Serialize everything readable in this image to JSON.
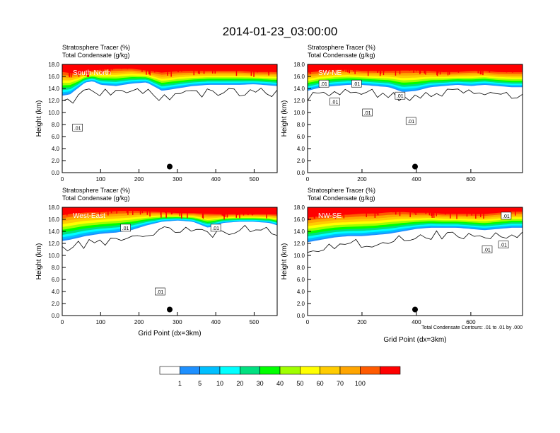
{
  "title": "2014-01-23_03:00:00",
  "chart_data": [
    {
      "type": "heatmap",
      "panel": "top-left",
      "label": "South-North",
      "subtitle_line1": "Stratosphere Tracer   (%)",
      "subtitle_line2": "Total Condensate   (g/kg)",
      "ylabel": "Height (km)",
      "xlabel": "",
      "xlim": [
        0,
        560
      ],
      "ylim": [
        0,
        18
      ],
      "xticks": [
        0,
        100,
        200,
        300,
        400,
        500
      ],
      "yticks": [
        "0.0",
        "2.0",
        "4.0",
        "6.0",
        "8.0",
        "10.0",
        "12.0",
        "14.0",
        "16.0",
        "18.0"
      ],
      "contour_labels": [
        {
          "x": 40,
          "y": 7.5,
          "text": ".01"
        }
      ],
      "marker": {
        "x": 280,
        "y": 1.0
      },
      "tracer_profile": {
        "x": [
          0,
          20,
          40,
          60,
          80,
          100,
          140,
          180,
          220,
          260,
          300,
          340,
          380,
          420,
          460,
          500,
          540,
          560
        ],
        "tracer_base_km": [
          12.8,
          13.0,
          14.0,
          15.0,
          15.2,
          14.6,
          14.4,
          14.8,
          15.0,
          13.6,
          14.0,
          14.4,
          14.6,
          14.6,
          14.6,
          14.7,
          14.5,
          14.4
        ],
        "tracer_top_km": [
          17.2,
          17.0,
          16.8,
          17.0,
          17.2,
          17.4,
          17.6,
          17.6,
          17.2,
          17.0,
          17.2,
          17.2,
          17.2,
          17.2,
          17.2,
          17.0,
          17.0,
          17.0
        ]
      }
    },
    {
      "type": "heatmap",
      "panel": "top-right",
      "label": "SW-NE",
      "subtitle_line1": "Stratosphere Tracer   (%)",
      "subtitle_line2": "Total Condensate   (g/kg)",
      "ylabel": "Height (km)",
      "xlabel": "",
      "xlim": [
        0,
        790
      ],
      "ylim": [
        0,
        18
      ],
      "xticks": [
        0,
        200,
        400,
        600
      ],
      "yticks": [
        "0.0",
        "2.0",
        "4.0",
        "6.0",
        "8.0",
        "10.0",
        "12.0",
        "14.0",
        "16.0",
        "18.0"
      ],
      "contour_labels": [
        {
          "x": 60,
          "y": 14.8,
          "text": ".01"
        },
        {
          "x": 180,
          "y": 14.8,
          "text": ".01"
        },
        {
          "x": 100,
          "y": 11.8,
          "text": ".01"
        },
        {
          "x": 220,
          "y": 10.0,
          "text": ".01"
        },
        {
          "x": 340,
          "y": 12.8,
          "text": ".01"
        },
        {
          "x": 380,
          "y": 8.6,
          "text": ".01"
        }
      ],
      "marker": {
        "x": 395,
        "y": 1.0
      },
      "tracer_profile": {
        "x": [
          0,
          50,
          100,
          150,
          200,
          250,
          300,
          350,
          400,
          450,
          500,
          550,
          600,
          650,
          700,
          750,
          790
        ],
        "tracer_base_km": [
          13.6,
          14.2,
          14.4,
          14.6,
          14.6,
          14.4,
          14.2,
          13.4,
          13.6,
          14.2,
          14.4,
          14.6,
          14.4,
          14.6,
          14.4,
          14.2,
          14.2
        ],
        "tracer_top_km": [
          17.0,
          17.2,
          17.4,
          17.4,
          17.2,
          17.2,
          17.2,
          17.4,
          17.4,
          17.2,
          17.0,
          17.0,
          17.2,
          17.2,
          17.0,
          17.0,
          17.0
        ]
      }
    },
    {
      "type": "heatmap",
      "panel": "bottom-left",
      "label": "West-East",
      "subtitle_line1": "Stratosphere Tracer   (%)",
      "subtitle_line2": "Total Condensate   (g/kg)",
      "ylabel": "Height (km)",
      "xlabel": "Grid Point (dx=3km)",
      "xlim": [
        0,
        560
      ],
      "ylim": [
        0,
        18
      ],
      "xticks": [
        0,
        100,
        200,
        300,
        400,
        500
      ],
      "yticks": [
        "0.0",
        "2.0",
        "4.0",
        "6.0",
        "8.0",
        "10.0",
        "12.0",
        "14.0",
        "16.0",
        "18.0"
      ],
      "contour_labels": [
        {
          "x": 165,
          "y": 14.6,
          "text": ".01"
        },
        {
          "x": 400,
          "y": 14.6,
          "text": ".01"
        },
        {
          "x": 255,
          "y": 4.0,
          "text": ".01"
        }
      ],
      "marker": {
        "x": 280,
        "y": 1.0
      },
      "tracer_profile": {
        "x": [
          0,
          20,
          60,
          100,
          140,
          180,
          220,
          260,
          300,
          340,
          380,
          420,
          460,
          500,
          540,
          560
        ],
        "tracer_base_km": [
          12.4,
          12.6,
          13.2,
          13.6,
          13.8,
          14.2,
          15.0,
          15.6,
          15.8,
          15.6,
          14.6,
          15.4,
          15.6,
          15.6,
          15.4,
          15.0
        ],
        "tracer_top_km": [
          17.2,
          17.4,
          17.6,
          17.6,
          17.8,
          17.8,
          17.6,
          17.4,
          17.2,
          17.2,
          17.2,
          17.0,
          17.0,
          17.0,
          17.0,
          17.0
        ]
      }
    },
    {
      "type": "heatmap",
      "panel": "bottom-right",
      "label": "NW-SE",
      "subtitle_line1": "Stratosphere Tracer   (%)",
      "subtitle_line2": "Total Condensate   (g/kg)",
      "ylabel": "Height (km)",
      "xlabel": "Grid Point (dx=3km)",
      "xlim": [
        0,
        790
      ],
      "ylim": [
        0,
        18
      ],
      "xticks": [
        0,
        200,
        400,
        600
      ],
      "yticks": [
        "0.0",
        "2.0",
        "4.0",
        "6.0",
        "8.0",
        "10.0",
        "12.0",
        "14.0",
        "16.0",
        "18.0"
      ],
      "contour_labels": [
        {
          "x": 660,
          "y": 11.0,
          "text": ".01"
        },
        {
          "x": 720,
          "y": 11.8,
          "text": ".01"
        },
        {
          "x": 730,
          "y": 16.6,
          "text": ".01"
        }
      ],
      "marker": {
        "x": 395,
        "y": 1.0
      },
      "contour_note": "Total Condensate Contours: .01 to .01 by .000",
      "tracer_profile": {
        "x": [
          0,
          50,
          100,
          150,
          200,
          250,
          300,
          350,
          400,
          450,
          500,
          550,
          600,
          650,
          700,
          750,
          790
        ],
        "tracer_base_km": [
          12.2,
          12.6,
          13.0,
          13.2,
          13.2,
          13.4,
          13.6,
          14.0,
          14.4,
          14.6,
          14.6,
          14.6,
          14.4,
          14.2,
          14.4,
          14.6,
          14.6
        ],
        "tracer_top_km": [
          16.8,
          17.0,
          17.2,
          17.2,
          17.4,
          17.4,
          17.6,
          17.6,
          17.4,
          17.4,
          17.2,
          17.2,
          17.2,
          17.2,
          17.4,
          17.6,
          17.6
        ]
      }
    }
  ],
  "colorbar": {
    "labels": [
      "1",
      "5",
      "10",
      "20",
      "30",
      "40",
      "50",
      "60",
      "70",
      "100"
    ],
    "colors": [
      "#ffffff",
      "#1e90ff",
      "#00bfff",
      "#00ffff",
      "#00e080",
      "#00ff00",
      "#a0ff00",
      "#ffff00",
      "#ffcc00",
      "#ffa500",
      "#ff5a00",
      "#ff0000"
    ]
  }
}
